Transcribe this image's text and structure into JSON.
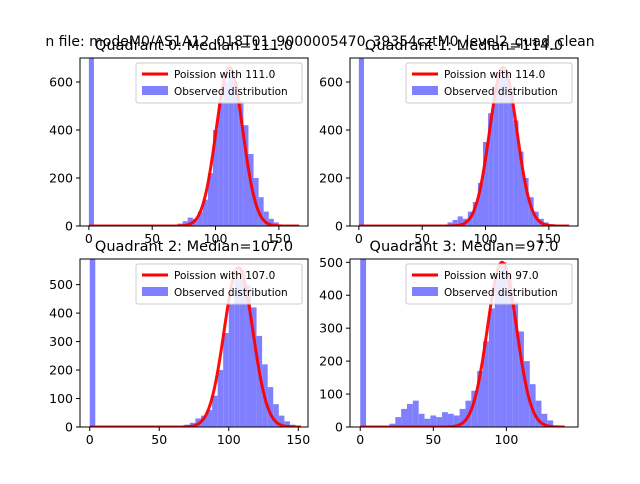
{
  "figure_title": "n file: modeM0/AS1A12_018T01_9000005470_39354cztM0_level2_quad_clean",
  "legend_labels": {
    "fit_suffix": "Poission with",
    "observed": "Observed distribution"
  },
  "colors": {
    "fit": "#ff0000",
    "hist": "#7f7fff",
    "axes": "#000000"
  },
  "chart_data": [
    {
      "type": "bar",
      "title": "Quadrant 0: Median=111.0",
      "fit_label": "Poission with 111.0",
      "median": 111.0,
      "xlim": [
        -7,
        173
      ],
      "ylim": [
        0,
        700
      ],
      "xticks": [
        0,
        50,
        100,
        150
      ],
      "yticks": [
        0,
        200,
        400,
        600
      ],
      "hist_x": [
        0,
        70,
        74,
        78,
        82,
        86,
        90,
        94,
        98,
        102,
        106,
        110,
        114,
        118,
        122,
        126,
        130,
        134,
        138,
        142,
        146
      ],
      "hist_counts": [
        700,
        10,
        20,
        35,
        30,
        60,
        110,
        220,
        400,
        520,
        600,
        640,
        600,
        520,
        420,
        300,
        200,
        120,
        60,
        30,
        15
      ],
      "hist_width": 4,
      "fit_scale": 660,
      "fit_sigma": 10.5,
      "fit_range": [
        0,
        166
      ]
    },
    {
      "type": "bar",
      "title": "Quadrant 1: Median=114.0",
      "fit_label": "Poission with 114.0",
      "median": 114.0,
      "xlim": [
        -7,
        173
      ],
      "ylim": [
        0,
        700
      ],
      "xticks": [
        0,
        50,
        100,
        150
      ],
      "yticks": [
        0,
        200,
        400,
        600
      ],
      "hist_x": [
        0,
        70,
        74,
        78,
        82,
        86,
        90,
        94,
        98,
        102,
        106,
        110,
        114,
        118,
        122,
        126,
        130,
        134,
        138,
        142,
        146,
        150
      ],
      "hist_counts": [
        700,
        15,
        25,
        40,
        30,
        60,
        100,
        180,
        350,
        470,
        580,
        640,
        650,
        560,
        440,
        310,
        200,
        120,
        60,
        30,
        15,
        8
      ],
      "hist_width": 4,
      "fit_scale": 660,
      "fit_sigma": 10.7,
      "fit_range": [
        0,
        166
      ]
    },
    {
      "type": "bar",
      "title": "Quadrant 2: Median=107.0",
      "fit_label": "Poission with 107.0",
      "median": 107.0,
      "xlim": [
        -7,
        157
      ],
      "ylim": [
        0,
        590
      ],
      "xticks": [
        0,
        50,
        100,
        150
      ],
      "yticks": [
        0,
        100,
        200,
        300,
        400,
        500
      ],
      "hist_x": [
        0,
        68,
        72,
        76,
        80,
        84,
        88,
        92,
        96,
        100,
        104,
        108,
        112,
        116,
        120,
        124,
        128,
        132,
        136,
        140,
        144
      ],
      "hist_counts": [
        590,
        8,
        15,
        30,
        40,
        60,
        110,
        200,
        330,
        430,
        520,
        550,
        500,
        420,
        320,
        220,
        140,
        80,
        40,
        20,
        8
      ],
      "hist_width": 4,
      "fit_scale": 560,
      "fit_sigma": 10.3,
      "fit_range": [
        0,
        152
      ]
    },
    {
      "type": "bar",
      "title": "Quadrant 3: Median=97.0",
      "fit_label": "Poission with 97.0",
      "median": 97.0,
      "xlim": [
        -7,
        149
      ],
      "ylim": [
        0,
        510
      ],
      "xticks": [
        0,
        50,
        100
      ],
      "yticks": [
        0,
        100,
        200,
        300,
        400,
        500
      ],
      "hist_x": [
        0,
        20,
        24,
        28,
        32,
        36,
        40,
        44,
        48,
        52,
        56,
        60,
        64,
        68,
        72,
        76,
        80,
        84,
        88,
        92,
        96,
        100,
        104,
        108,
        112,
        116,
        120,
        124,
        128
      ],
      "hist_counts": [
        510,
        10,
        30,
        55,
        70,
        80,
        40,
        25,
        35,
        30,
        45,
        40,
        35,
        55,
        80,
        110,
        170,
        260,
        360,
        450,
        500,
        460,
        380,
        290,
        200,
        130,
        80,
        40,
        20
      ],
      "hist_width": 4,
      "fit_scale": 500,
      "fit_sigma": 9.9,
      "fit_range": [
        0,
        140
      ]
    }
  ]
}
